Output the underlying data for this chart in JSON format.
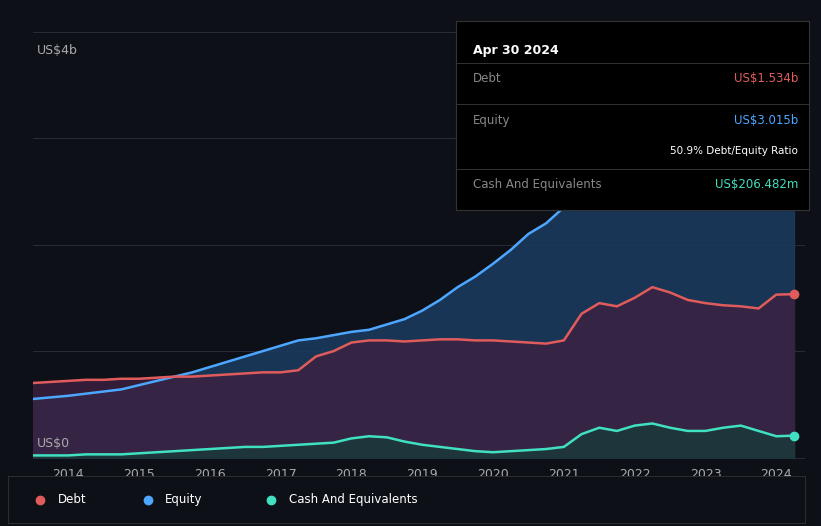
{
  "background_color": "#0d1117",
  "plot_bg_color": "#0d1117",
  "title_box": {
    "date": "Apr 30 2024",
    "debt_label": "Debt",
    "debt_value": "US$1.534b",
    "equity_label": "Equity",
    "equity_value": "US$3.015b",
    "ratio": "50.9%",
    "ratio_label": "Debt/Equity Ratio",
    "cash_label": "Cash And Equivalents",
    "cash_value": "US$206.482m"
  },
  "y_label_top": "US$4b",
  "y_label_bottom": "US$0",
  "x_ticks": [
    2014,
    2015,
    2016,
    2017,
    2018,
    2019,
    2020,
    2021,
    2022,
    2023,
    2024
  ],
  "debt_color": "#e05c5c",
  "equity_color": "#4da6ff",
  "cash_color": "#40e0c0",
  "equity_fill_color": "#1a3a5c",
  "debt_fill_color": "#3d2040",
  "cash_fill_color": "#1a3a3a",
  "grid_color": "#2a2a3a",
  "years": [
    2013.5,
    2014.0,
    2014.25,
    2014.5,
    2014.75,
    2015.0,
    2015.25,
    2015.5,
    2015.75,
    2016.0,
    2016.25,
    2016.5,
    2016.75,
    2017.0,
    2017.25,
    2017.5,
    2017.75,
    2018.0,
    2018.25,
    2018.5,
    2018.75,
    2019.0,
    2019.25,
    2019.5,
    2019.75,
    2020.0,
    2020.25,
    2020.5,
    2020.75,
    2021.0,
    2021.25,
    2021.5,
    2021.75,
    2022.0,
    2022.25,
    2022.5,
    2022.75,
    2023.0,
    2023.25,
    2023.5,
    2023.75,
    2024.0,
    2024.25
  ],
  "debt": [
    0.7,
    0.72,
    0.73,
    0.73,
    0.74,
    0.74,
    0.75,
    0.76,
    0.76,
    0.77,
    0.78,
    0.79,
    0.8,
    0.8,
    0.82,
    0.95,
    1.0,
    1.08,
    1.1,
    1.1,
    1.09,
    1.1,
    1.11,
    1.11,
    1.1,
    1.1,
    1.09,
    1.08,
    1.07,
    1.1,
    1.35,
    1.45,
    1.42,
    1.5,
    1.6,
    1.55,
    1.48,
    1.45,
    1.43,
    1.42,
    1.4,
    1.53,
    1.534
  ],
  "equity": [
    0.55,
    0.58,
    0.6,
    0.62,
    0.64,
    0.68,
    0.72,
    0.76,
    0.8,
    0.85,
    0.9,
    0.95,
    1.0,
    1.05,
    1.1,
    1.12,
    1.15,
    1.18,
    1.2,
    1.25,
    1.3,
    1.38,
    1.48,
    1.6,
    1.7,
    1.82,
    1.95,
    2.1,
    2.2,
    2.35,
    2.5,
    2.6,
    2.7,
    2.8,
    2.85,
    2.88,
    2.9,
    2.92,
    2.95,
    2.98,
    3.0,
    3.01,
    3.015
  ],
  "cash": [
    0.02,
    0.02,
    0.03,
    0.03,
    0.03,
    0.04,
    0.05,
    0.06,
    0.07,
    0.08,
    0.09,
    0.1,
    0.1,
    0.11,
    0.12,
    0.13,
    0.14,
    0.18,
    0.2,
    0.19,
    0.15,
    0.12,
    0.1,
    0.08,
    0.06,
    0.05,
    0.06,
    0.07,
    0.08,
    0.1,
    0.22,
    0.28,
    0.25,
    0.3,
    0.32,
    0.28,
    0.25,
    0.25,
    0.28,
    0.3,
    0.25,
    0.2,
    0.206
  ],
  "legend_items": [
    {
      "label": "Debt",
      "color": "#e05c5c"
    },
    {
      "label": "Equity",
      "color": "#4da6ff"
    },
    {
      "label": "Cash And Equivalents",
      "color": "#40e0c0"
    }
  ]
}
